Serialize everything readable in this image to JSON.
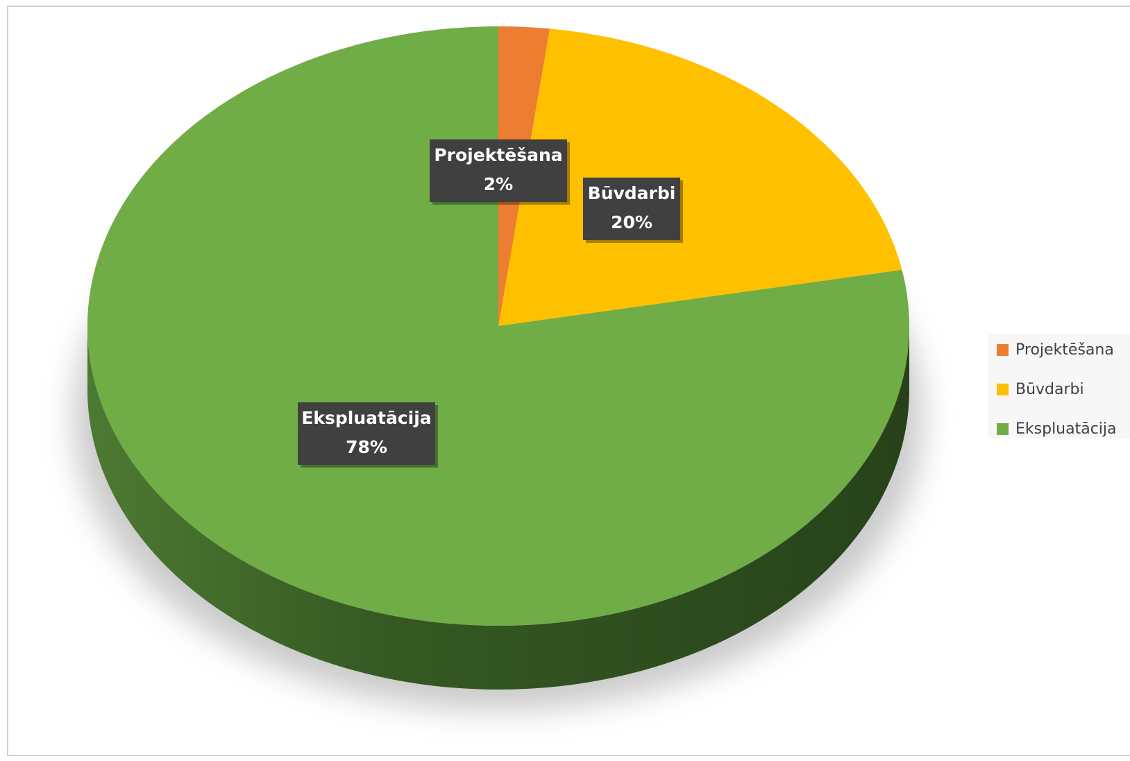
{
  "chart_data": {
    "type": "pie",
    "categories": [
      "Projektēšana",
      "Būvdarbi",
      "Ekspluatācija"
    ],
    "values": [
      2,
      20,
      78
    ],
    "value_labels": [
      "2%",
      "20%",
      "78%"
    ],
    "colors": [
      "#ed7d31",
      "#ffc000",
      "#70ad47"
    ],
    "legend": "right"
  }
}
